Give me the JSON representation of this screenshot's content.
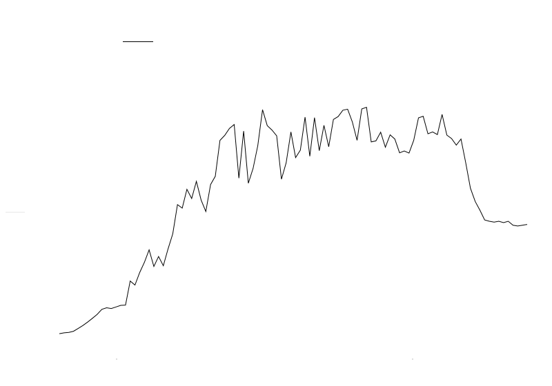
{
  "chart_data": {
    "type": "line",
    "title": "",
    "xlabel": "",
    "ylabel": "",
    "grid": false,
    "legend": "top-left",
    "line_color": "#000000",
    "xlim": [
      0,
      130
    ],
    "ylim": [
      0,
      110
    ],
    "series": [
      {
        "values": [
          0.5,
          0.8,
          1.0,
          1.4,
          2.5,
          3.6,
          4.9,
          6.3,
          7.8,
          9.7,
          10.3,
          10.0,
          10.6,
          11.2,
          11.3,
          20.4,
          18.9,
          23.6,
          27.5,
          32.2,
          25.9,
          29.7,
          26.2,
          32.5,
          38.3,
          49.3,
          48.0,
          55.1,
          51.6,
          58.1,
          51.0,
          46.7,
          56.9,
          60.0,
          73.6,
          75.5,
          78.1,
          79.6,
          59.3,
          77.1,
          57.4,
          63.0,
          71.6,
          85.2,
          79.2,
          77.5,
          75.3,
          58.9,
          65.1,
          76.8,
          67.1,
          69.9,
          82.4,
          67.6,
          82.2,
          69.7,
          79.3,
          71.2,
          81.5,
          82.6,
          85.0,
          85.4,
          80.6,
          73.6,
          85.5,
          86.1,
          73.0,
          73.4,
          76.7,
          71.0,
          75.7,
          74.1,
          68.9,
          69.6,
          68.8,
          73.6,
          82.1,
          82.7,
          76.1,
          76.8,
          75.8,
          83.4,
          75.6,
          74.3,
          71.8,
          74.1,
          65.1,
          55.5,
          50.5,
          47.2,
          43.5,
          43.0,
          42.7,
          43.0,
          42.5,
          43.0,
          41.5,
          41.2,
          41.5,
          41.8
        ]
      }
    ]
  }
}
